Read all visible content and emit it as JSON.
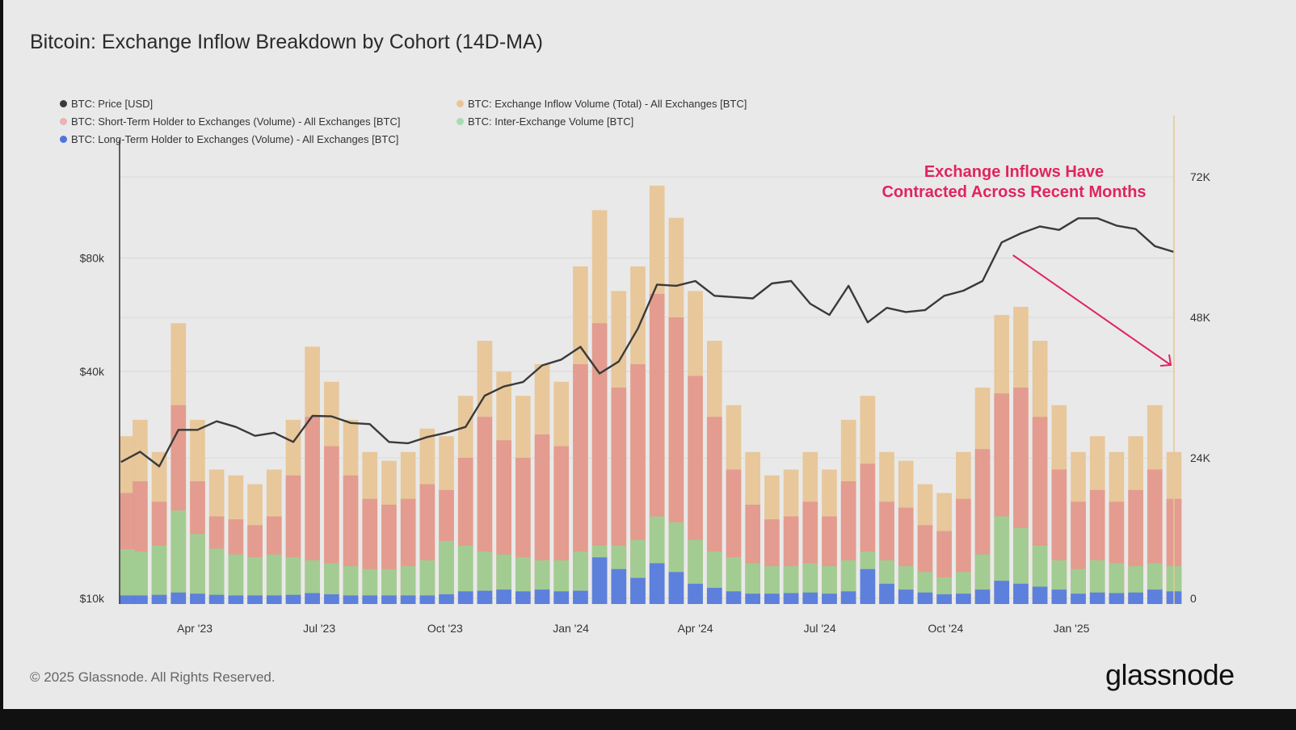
{
  "title": "Bitcoin: Exchange Inflow Breakdown by Cohort (14D-MA)",
  "footer": "© 2025 Glassnode. All Rights Reserved.",
  "logo": "glassnode",
  "colors": {
    "price": "#3a3a3a",
    "total": "#e8c596",
    "sth": "#e39a8e",
    "inter": "#9fcf94",
    "lth": "#5a7be0",
    "annotation": "#e0245e"
  },
  "chart_data": {
    "type": "bar+line",
    "title": "Bitcoin: Exchange Inflow Breakdown by Cohort (14D-MA)",
    "legend_placement": "top-left",
    "grid": true,
    "x_tick_labels": [
      "Apr '23",
      "Jul '23",
      "Oct '23",
      "Jan '24",
      "Apr '24",
      "Jul '24",
      "Oct '24",
      "Jan '25"
    ],
    "x_tick_dates": [
      "2023-04-01",
      "2023-07-01",
      "2023-10-01",
      "2024-01-01",
      "2024-04-01",
      "2024-07-01",
      "2024-10-01",
      "2025-01-01"
    ],
    "xlim": [
      "2023-02-05",
      "2025-03-17"
    ],
    "y_left": {
      "scale": "log",
      "ylim": [
        10000,
        140000
      ],
      "tick_values": [
        10000,
        40000,
        80000
      ],
      "tick_labels": [
        "$10k",
        "$40k",
        "$80k"
      ]
    },
    "y_right": {
      "scale": "linear",
      "ylim": [
        0,
        83000
      ],
      "tick_values": [
        0,
        24000,
        48000,
        72000
      ],
      "tick_labels": [
        "0",
        "24K",
        "48K",
        "72K"
      ]
    },
    "x": [
      "2023-02-06",
      "2023-02-20",
      "2023-03-06",
      "2023-03-20",
      "2023-04-03",
      "2023-04-17",
      "2023-05-01",
      "2023-05-15",
      "2023-05-29",
      "2023-06-12",
      "2023-06-26",
      "2023-07-10",
      "2023-07-24",
      "2023-08-07",
      "2023-08-21",
      "2023-09-04",
      "2023-09-18",
      "2023-10-02",
      "2023-10-16",
      "2023-10-30",
      "2023-11-13",
      "2023-11-27",
      "2023-12-11",
      "2023-12-25",
      "2024-01-08",
      "2024-01-22",
      "2024-02-05",
      "2024-02-19",
      "2024-03-04",
      "2024-03-18",
      "2024-04-01",
      "2024-04-15",
      "2024-04-29",
      "2024-05-13",
      "2024-05-27",
      "2024-06-10",
      "2024-06-24",
      "2024-07-08",
      "2024-07-22",
      "2024-08-05",
      "2024-08-19",
      "2024-09-02",
      "2024-09-16",
      "2024-09-30",
      "2024-10-14",
      "2024-10-28",
      "2024-11-11",
      "2024-11-25",
      "2024-12-09",
      "2024-12-23",
      "2025-01-06",
      "2025-01-20",
      "2025-02-03",
      "2025-02-17",
      "2025-03-03",
      "2025-03-17"
    ],
    "series": [
      {
        "name": "BTC: Price [USD]",
        "axis": "left",
        "kind": "line",
        "color": "#3a3a3a",
        "values": [
          23000,
          24500,
          22400,
          28000,
          28000,
          29500,
          28500,
          27000,
          27500,
          26000,
          30500,
          30400,
          29200,
          29000,
          26000,
          25800,
          26800,
          27500,
          28500,
          34500,
          36500,
          37500,
          41500,
          43000,
          46500,
          39500,
          42500,
          52000,
          68000,
          67500,
          69500,
          63500,
          63000,
          62500,
          68500,
          69500,
          60500,
          56500,
          67500,
          54000,
          59000,
          57500,
          58200,
          63500,
          65500,
          69500,
          88000,
          93000,
          97000,
          95000,
          102000,
          102000,
          97500,
          95500,
          86000,
          83000
        ]
      },
      {
        "name": "BTC: Exchange Inflow Volume (Total) - All Exchanges [BTC]",
        "axis": "right",
        "kind": "bar",
        "color": "#e8c596",
        "values": [
          27700,
          30500,
          25000,
          47000,
          30500,
          22000,
          21000,
          19500,
          22000,
          30500,
          43000,
          37000,
          30500,
          25000,
          23500,
          25000,
          29000,
          27700,
          34600,
          44000,
          38700,
          34600,
          40000,
          37000,
          56700,
          66300,
          52500,
          56700,
          70500,
          65000,
          52500,
          44000,
          33000,
          25000,
          21000,
          22000,
          25000,
          22000,
          30500,
          34600,
          25000,
          23500,
          19500,
          18000,
          25000,
          36000,
          48400,
          49800,
          44000,
          33000,
          25000,
          27700,
          25000,
          27700,
          33000,
          25000
        ]
      },
      {
        "name": "BTC: Short-Term Holder to Exchanges (Volume) - All Exchanges [BTC]",
        "axis": "right",
        "kind": "bar",
        "color": "#e39a8e",
        "values": [
          18000,
          20000,
          16500,
          33000,
          20000,
          14000,
          13500,
          12500,
          14000,
          21000,
          31000,
          26000,
          21000,
          17000,
          16000,
          17000,
          19500,
          18500,
          24000,
          31000,
          27000,
          24000,
          28000,
          26000,
          40000,
          47000,
          36000,
          40000,
          52000,
          48000,
          38000,
          31000,
          22000,
          16000,
          13500,
          14000,
          16500,
          14000,
          20000,
          23000,
          16500,
          15500,
          12500,
          11500,
          17000,
          25500,
          35000,
          36000,
          31000,
          22000,
          16500,
          18500,
          16500,
          18500,
          22000,
          17000
        ]
      },
      {
        "name": "BTC: Inter-Exchange Volume [BTC]",
        "axis": "right",
        "kind": "bar",
        "color": "#9fcf94",
        "values": [
          8400,
          8000,
          9000,
          15000,
          11000,
          8500,
          7500,
          7000,
          7500,
          7000,
          6500,
          6000,
          5500,
          5000,
          5000,
          5500,
          6500,
          9800,
          9000,
          8000,
          7500,
          7000,
          6500,
          6500,
          8000,
          9000,
          9000,
          10000,
          14000,
          13000,
          10000,
          8000,
          7000,
          6000,
          5500,
          5500,
          6000,
          5500,
          6500,
          8000,
          6500,
          5500,
          4500,
          3600,
          4500,
          7500,
          14000,
          12000,
          9000,
          6500,
          5000,
          6500,
          6000,
          5500,
          6000,
          5500
        ]
      },
      {
        "name": "BTC: Long-Term Holder to Exchanges (Volume) - All Exchanges [BTC]",
        "axis": "right",
        "kind": "bar",
        "color": "#5a7be0",
        "values": [
          500,
          500,
          600,
          1000,
          800,
          600,
          500,
          500,
          500,
          600,
          900,
          700,
          500,
          500,
          500,
          500,
          500,
          700,
          1200,
          1300,
          1500,
          1200,
          1500,
          1200,
          1300,
          7000,
          5000,
          3500,
          6000,
          4500,
          2500,
          1800,
          1200,
          800,
          800,
          900,
          1000,
          800,
          1200,
          5000,
          2500,
          1500,
          1000,
          700,
          800,
          1500,
          3000,
          2500,
          2000,
          1500,
          800,
          1000,
          900,
          1000,
          1500,
          1200
        ]
      }
    ],
    "annotations": [
      {
        "text_lines": [
          "Exchange Inflows Have",
          "Contracted Across Recent Months"
        ],
        "arrow_from": "2024-11-11",
        "arrow_to": "2025-03-17"
      }
    ]
  },
  "legend": [
    {
      "label": "BTC: Price [USD]",
      "color": "#3a3a3a"
    },
    {
      "label": "BTC: Exchange Inflow Volume (Total) - All Exchanges [BTC]",
      "color": "#e8c596"
    },
    {
      "label": "BTC: Short-Term Holder to Exchanges (Volume) - All Exchanges [BTC]",
      "color": "#e8b4b4"
    },
    {
      "label": "BTC: Inter-Exchange Volume [BTC]",
      "color": "#a8dcb0"
    },
    {
      "label": "BTC: Long-Term Holder to Exchanges (Volume) - All Exchanges [BTC]",
      "color": "#4f74e0"
    }
  ]
}
